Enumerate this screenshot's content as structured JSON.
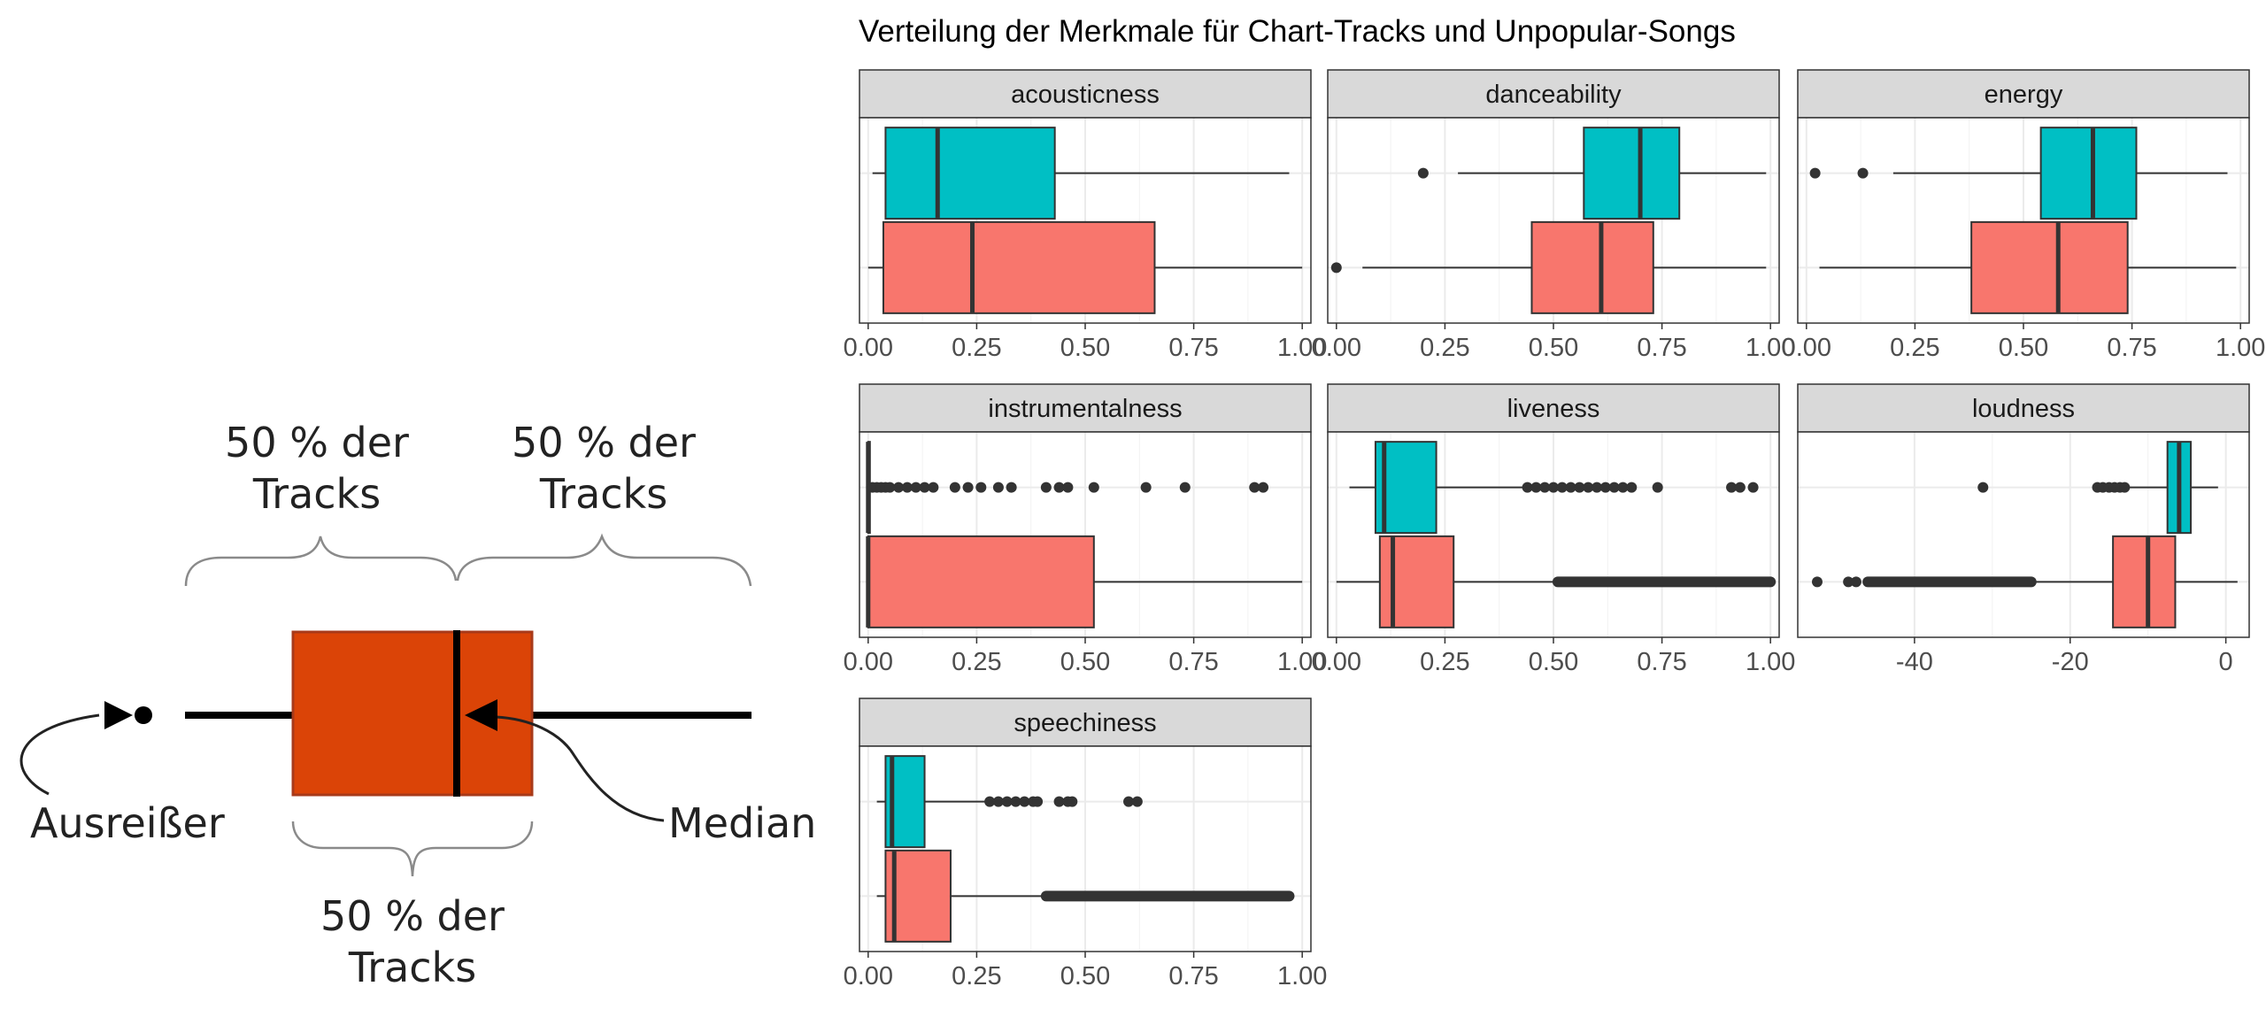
{
  "legend": {
    "upper_left_label": [
      "50 % der",
      "Tracks"
    ],
    "upper_right_label": [
      "50 % der",
      "Tracks"
    ],
    "bottom_label": [
      "50 % der",
      "Tracks"
    ],
    "outlier_label": "Ausreißer",
    "median_label": "Median"
  },
  "chart_data": {
    "type": "boxplot",
    "title": "Verteilung der Merkmale für Chart-Tracks und Unpopular-Songs",
    "layout": "facet grid, 3 columns",
    "series_colors": [
      "#00BFC4",
      "#F8766D"
    ],
    "grid": true,
    "legend_position": "none",
    "facets": [
      {
        "name": "acousticness",
        "xlim": [
          -0.02,
          1.02
        ],
        "ticks": [
          0,
          0.25,
          0.5,
          0.75,
          1
        ],
        "tick_labels": [
          "0.00",
          "0.25",
          "0.50",
          "0.75",
          "1.00"
        ],
        "boxes": [
          {
            "color": "#00BFC4",
            "whisker_low": 0.01,
            "q1": 0.04,
            "median": 0.16,
            "q3": 0.43,
            "whisker_high": 0.97,
            "outliers": []
          },
          {
            "color": "#F8766D",
            "whisker_low": 0.0,
            "q1": 0.035,
            "median": 0.24,
            "q3": 0.66,
            "whisker_high": 1.0,
            "outliers": []
          }
        ]
      },
      {
        "name": "danceability",
        "xlim": [
          -0.02,
          1.02
        ],
        "ticks": [
          0,
          0.25,
          0.5,
          0.75,
          1
        ],
        "tick_labels": [
          "0.00",
          "0.25",
          "0.50",
          "0.75",
          "1.00"
        ],
        "boxes": [
          {
            "color": "#00BFC4",
            "whisker_low": 0.28,
            "q1": 0.57,
            "median": 0.7,
            "q3": 0.79,
            "whisker_high": 0.99,
            "outliers": [
              0.2
            ]
          },
          {
            "color": "#F8766D",
            "whisker_low": 0.06,
            "q1": 0.45,
            "median": 0.61,
            "q3": 0.73,
            "whisker_high": 0.99,
            "outliers": [
              0.0
            ]
          }
        ]
      },
      {
        "name": "energy",
        "xlim": [
          -0.02,
          1.02
        ],
        "ticks": [
          0,
          0.25,
          0.5,
          0.75,
          1
        ],
        "tick_labels": [
          "0.00",
          "0.25",
          "0.50",
          "0.75",
          "1.00"
        ],
        "boxes": [
          {
            "color": "#00BFC4",
            "whisker_low": 0.2,
            "q1": 0.54,
            "median": 0.66,
            "q3": 0.76,
            "whisker_high": 0.97,
            "outliers": [
              0.02,
              0.13
            ]
          },
          {
            "color": "#F8766D",
            "whisker_low": 0.03,
            "q1": 0.38,
            "median": 0.58,
            "q3": 0.74,
            "whisker_high": 0.99,
            "outliers": []
          }
        ]
      },
      {
        "name": "instrumentalness",
        "xlim": [
          -0.02,
          1.02
        ],
        "ticks": [
          0,
          0.25,
          0.5,
          0.75,
          1
        ],
        "tick_labels": [
          "0.00",
          "0.25",
          "0.50",
          "0.75",
          "1.00"
        ],
        "boxes": [
          {
            "color": "#00BFC4",
            "whisker_low": 0.0,
            "q1": 0.0,
            "median": 0.0,
            "q3": 0.001,
            "whisker_high": 0.002,
            "outliers": [
              0.01,
              0.02,
              0.03,
              0.04,
              0.05,
              0.07,
              0.09,
              0.11,
              0.13,
              0.15,
              0.2,
              0.23,
              0.26,
              0.3,
              0.33,
              0.41,
              0.44,
              0.46,
              0.52,
              0.64,
              0.73,
              0.89,
              0.91
            ]
          },
          {
            "color": "#F8766D",
            "whisker_low": 0.0,
            "q1": 0.0,
            "median": 0.0,
            "q3": 0.52,
            "whisker_high": 1.0,
            "outliers": []
          }
        ]
      },
      {
        "name": "liveness",
        "xlim": [
          -0.02,
          1.02
        ],
        "ticks": [
          0,
          0.25,
          0.5,
          0.75,
          1
        ],
        "tick_labels": [
          "0.00",
          "0.25",
          "0.50",
          "0.75",
          "1.00"
        ],
        "boxes": [
          {
            "color": "#00BFC4",
            "whisker_low": 0.03,
            "q1": 0.09,
            "median": 0.11,
            "q3": 0.23,
            "whisker_high": 0.43,
            "outliers": [
              0.44,
              0.46,
              0.48,
              0.5,
              0.52,
              0.54,
              0.56,
              0.58,
              0.6,
              0.62,
              0.64,
              0.66,
              0.68,
              0.74,
              0.91,
              0.93,
              0.96
            ]
          },
          {
            "color": "#F8766D",
            "whisker_low": 0.0,
            "q1": 0.1,
            "median": 0.13,
            "q3": 0.27,
            "whisker_high": 0.51,
            "outliers": "dense band from 0.51 to 1.00"
          }
        ]
      },
      {
        "name": "loudness",
        "xlim": [
          -55,
          3
        ],
        "ticks": [
          -40,
          -20,
          0
        ],
        "tick_labels": [
          "-40",
          "-20",
          "0"
        ],
        "boxes": [
          {
            "color": "#00BFC4",
            "whisker_low": -12.5,
            "q1": -7.5,
            "median": -6.0,
            "q3": -4.5,
            "whisker_high": -1.0,
            "outliers": [
              -31.2,
              -16.5,
              -15.8,
              -15.0,
              -14.3,
              -13.6,
              -13.0
            ]
          },
          {
            "color": "#F8766D",
            "whisker_low": -25.0,
            "q1": -14.5,
            "median": -10.0,
            "q3": -6.5,
            "whisker_high": 1.5,
            "outliers": "dense band from -46 to -25, plus -52.5, -48.5, -47.5"
          }
        ]
      },
      {
        "name": "speechiness",
        "xlim": [
          -0.02,
          1.02
        ],
        "ticks": [
          0,
          0.25,
          0.5,
          0.75,
          1
        ],
        "tick_labels": [
          "0.00",
          "0.25",
          "0.50",
          "0.75",
          "1.00"
        ],
        "boxes": [
          {
            "color": "#00BFC4",
            "whisker_low": 0.02,
            "q1": 0.04,
            "median": 0.055,
            "q3": 0.13,
            "whisker_high": 0.27,
            "outliers": [
              0.28,
              0.3,
              0.32,
              0.34,
              0.36,
              0.38,
              0.39,
              0.44,
              0.46,
              0.47,
              0.6,
              0.62
            ]
          },
          {
            "color": "#F8766D",
            "whisker_low": 0.02,
            "q1": 0.04,
            "median": 0.06,
            "q3": 0.19,
            "whisker_high": 0.41,
            "outliers": "dense band from 0.41 to 0.97"
          }
        ]
      }
    ]
  }
}
